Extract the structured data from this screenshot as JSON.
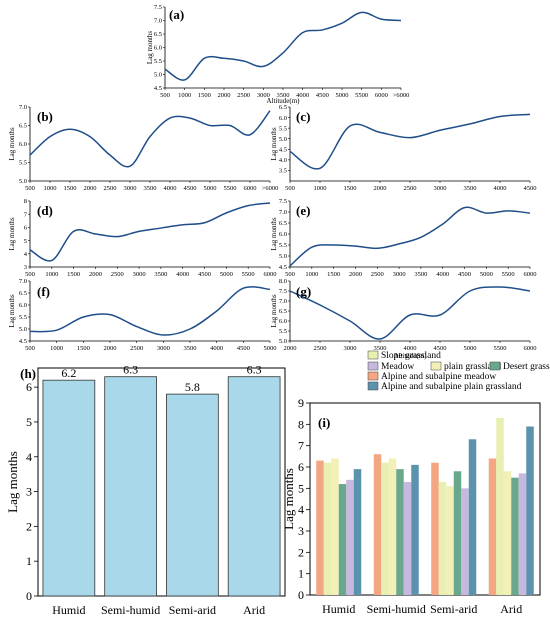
{
  "colors": {
    "curve": "#1f4e8a",
    "bar_h": "#a8d8ea",
    "bar_h_edge": "#333333"
  },
  "chart_data": [
    {
      "type": "line",
      "id": "a",
      "panel_label": "(a)",
      "xlabel": "Altitude(m)",
      "ylabel": "Lag months",
      "xticks": [
        "500",
        "1000",
        "1500",
        "2000",
        "2500",
        "3000",
        "3500",
        "4000",
        "4500",
        "5000",
        "5500",
        "6000",
        ">6000"
      ],
      "ylim": [
        4.5,
        7.5
      ],
      "yticks": [
        "4.5",
        "5.0",
        "5.5",
        "6.0",
        "6.5",
        "7.0",
        "7.5"
      ],
      "x": [
        0,
        1,
        2,
        3,
        4,
        5,
        6,
        7,
        8,
        9,
        10,
        11,
        12
      ],
      "y": [
        5.2,
        4.8,
        5.6,
        5.6,
        5.5,
        5.3,
        5.8,
        6.55,
        6.65,
        6.9,
        7.3,
        7.05,
        7.0
      ]
    },
    {
      "type": "line",
      "id": "b",
      "panel_label": "(b)",
      "xlabel": "",
      "ylabel": "Lag months",
      "xticks": [
        "500",
        "1000",
        "1500",
        "2000",
        "2500",
        "3000",
        "3500",
        "4000",
        "4500",
        "5000",
        "5500",
        "6000",
        ">6000"
      ],
      "ylim": [
        5.0,
        7.0
      ],
      "yticks": [
        "5.0",
        "5.5",
        "6.0",
        "6.5",
        "7.0"
      ],
      "x": [
        0,
        1,
        2,
        3,
        4,
        5,
        6,
        7,
        8,
        9,
        10,
        11,
        12
      ],
      "y": [
        5.7,
        6.2,
        6.4,
        6.2,
        5.7,
        5.4,
        6.2,
        6.7,
        6.7,
        6.5,
        6.5,
        6.25,
        6.9
      ]
    },
    {
      "type": "line",
      "id": "c",
      "panel_label": "(c)",
      "xlabel": "",
      "ylabel": "Lag months",
      "xticks": [
        "500",
        "1000",
        "1500",
        "2000",
        "2500",
        "3000",
        "3500",
        "4000",
        "4500"
      ],
      "ylim": [
        3.0,
        6.5
      ],
      "yticks": [
        "3.5",
        "4.0",
        "4.5",
        "5.0",
        "5.5",
        "6.0",
        "6.5"
      ],
      "x": [
        500,
        1000,
        1500,
        2000,
        2500,
        3000,
        3500,
        4000,
        4500
      ],
      "y": [
        4.4,
        3.6,
        5.6,
        5.3,
        5.05,
        5.4,
        5.7,
        6.05,
        6.15
      ]
    },
    {
      "type": "line",
      "id": "d",
      "panel_label": "(d)",
      "xlabel": "",
      "ylabel": "Lag months",
      "xticks": [
        "500",
        "1000",
        "1500",
        "2000",
        "2500",
        "3000",
        "3500",
        "4000",
        "4500",
        "5000",
        "5500",
        "6000"
      ],
      "ylim": [
        3,
        8
      ],
      "yticks": [
        "3",
        "4",
        "5",
        "6",
        "7",
        "8"
      ],
      "x": [
        500,
        1000,
        1500,
        2000,
        2500,
        3000,
        3500,
        4000,
        4500,
        5000,
        5500,
        6000
      ],
      "y": [
        4.3,
        3.5,
        5.7,
        5.5,
        5.3,
        5.7,
        5.95,
        6.2,
        6.35,
        7.1,
        7.65,
        7.85
      ]
    },
    {
      "type": "line",
      "id": "e",
      "panel_label": "(e)",
      "xlabel": "",
      "ylabel": "Lag months",
      "xticks": [
        "500",
        "1000",
        "1500",
        "2000",
        "2500",
        "3000",
        "3500",
        "4000",
        "4500",
        "5000",
        "5500",
        "6000"
      ],
      "ylim": [
        4.5,
        7.5
      ],
      "yticks": [
        "4.5",
        "5.0",
        "5.5",
        "6.0",
        "6.5",
        "7.0",
        "7.5"
      ],
      "x": [
        500,
        1000,
        1500,
        2000,
        2500,
        3000,
        3500,
        4000,
        4500,
        5000,
        5500,
        6000
      ],
      "y": [
        4.55,
        5.4,
        5.5,
        5.45,
        5.35,
        5.55,
        5.85,
        6.45,
        7.2,
        6.95,
        7.05,
        6.95
      ]
    },
    {
      "type": "line",
      "id": "f",
      "panel_label": "(f)",
      "xlabel": "",
      "ylabel": "Lag months",
      "xticks": [
        "500",
        "1000",
        "1500",
        "2000",
        "2500",
        "3000",
        "3500",
        "4000",
        "4500",
        "5000"
      ],
      "ylim": [
        4.5,
        7.0
      ],
      "yticks": [
        "4.5",
        "5.0",
        "5.5",
        "6.0",
        "6.5",
        "7.0"
      ],
      "x": [
        500,
        1000,
        1500,
        2000,
        2500,
        3000,
        3500,
        4000,
        4500,
        5000
      ],
      "y": [
        4.9,
        4.95,
        5.5,
        5.6,
        5.1,
        4.75,
        5.0,
        5.75,
        6.7,
        6.65
      ]
    },
    {
      "type": "line",
      "id": "g",
      "panel_label": "(g)",
      "xlabel": "Altitude(m)",
      "ylabel": "Lag months",
      "xticks": [
        "2000",
        "2500",
        "3000",
        "3500",
        "4000",
        "4500",
        "5000",
        "5500",
        "6000"
      ],
      "ylim": [
        5.0,
        8.0
      ],
      "yticks": [
        "5.0",
        "5.5",
        "6.0",
        "6.5",
        "7.0",
        "7.5",
        "8.0"
      ],
      "x": [
        2000,
        2500,
        3000,
        3500,
        4000,
        4500,
        5000,
        5500,
        6000
      ],
      "y": [
        7.5,
        6.8,
        6.0,
        5.1,
        6.3,
        6.3,
        7.5,
        7.7,
        7.5
      ]
    },
    {
      "type": "bar",
      "id": "h",
      "panel_label": "(h)",
      "xlabel": "",
      "ylabel": "Lag months",
      "categories": [
        "Humid",
        "Semi-humid",
        "Semi-arid",
        "Arid"
      ],
      "values": [
        6.2,
        6.3,
        5.8,
        6.3
      ],
      "value_labels": [
        "6.2",
        "6.3",
        "5.8",
        "6.3"
      ],
      "ylim": [
        0,
        6.55
      ],
      "yticks": [
        "0",
        "1",
        "2",
        "3",
        "4",
        "5",
        "6"
      ]
    },
    {
      "type": "bar",
      "id": "i",
      "panel_label": "(i)",
      "xlabel": "",
      "ylabel": "Lag months",
      "categories": [
        "Humid",
        "Semi-humid",
        "Semi-arid",
        "Arid"
      ],
      "ylim": [
        0,
        9
      ],
      "yticks": [
        "0",
        "1",
        "2",
        "3",
        "4",
        "5",
        "6",
        "7",
        "8",
        "9"
      ],
      "legend_position": "top",
      "series": [
        {
          "name": "Alpine and subalpine meadow",
          "color": "#f4a582",
          "values": [
            6.3,
            6.6,
            6.2,
            6.4
          ]
        },
        {
          "name": "Slope grassland",
          "color": "#e8efb0",
          "values": [
            6.2,
            6.2,
            5.3,
            8.3
          ]
        },
        {
          "name": "plain grassland",
          "color": "#f2f0b6",
          "values": [
            6.4,
            6.4,
            5.1,
            5.8
          ]
        },
        {
          "name": "Desert grassland",
          "color": "#6aa88e",
          "values": [
            5.2,
            5.9,
            5.8,
            5.5
          ]
        },
        {
          "name": "Meadow",
          "color": "#c7b8e0",
          "values": [
            5.4,
            5.3,
            5.0,
            5.7
          ]
        },
        {
          "name": "Alpine and subalpine plain grassland",
          "color": "#5b93ad",
          "values": [
            5.9,
            6.1,
            7.3,
            7.9
          ]
        }
      ]
    }
  ]
}
